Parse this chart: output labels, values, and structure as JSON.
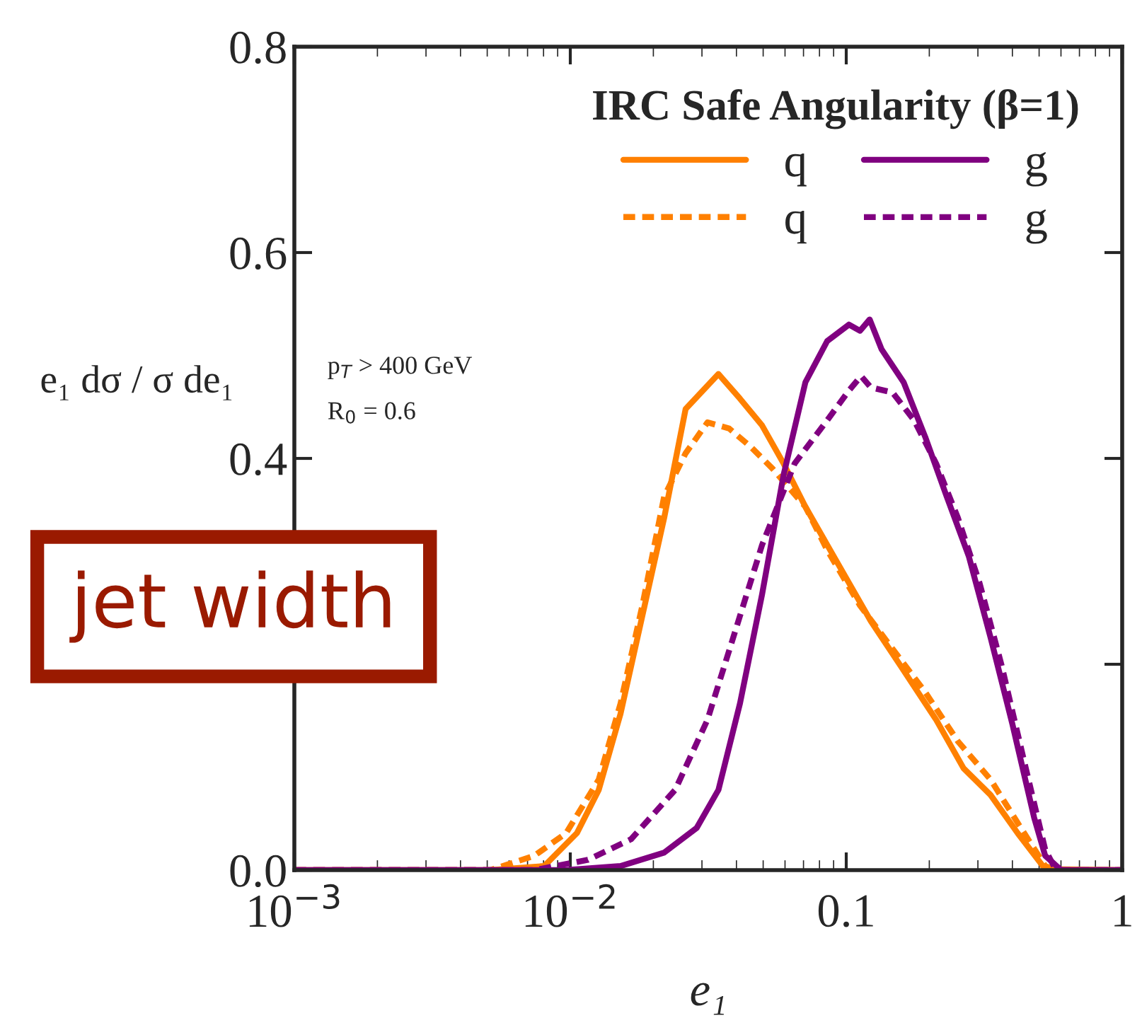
{
  "chart_data": {
    "type": "line",
    "legend_title": "IRC Safe Angularity (β=1)",
    "xlabel": "e₁",
    "ylabel": "e₁ dσ / σ de₁",
    "annotations": [
      "p$_{T}$ > 400 GeV",
      "R$_{0}$ = 0.6",
      "jet width"
    ],
    "log": "x",
    "legend": "top right",
    "grid": false,
    "xlim": [
      0.001,
      1
    ],
    "ylim": [
      0,
      0.8
    ],
    "xticks": [
      {
        "value": 0.001,
        "label": "10$^{−3}$"
      },
      {
        "value": 0.01,
        "label": "10$^{−2}$"
      },
      {
        "value": 0.1,
        "label": "0.1"
      },
      {
        "value": 1,
        "label": "1"
      }
    ],
    "yticks": [
      {
        "value": 0,
        "label": "0.0"
      },
      {
        "value": 0.2,
        "label": null
      },
      {
        "value": 0.4,
        "label": "0.4"
      },
      {
        "value": 0.6,
        "label": "0.6"
      },
      {
        "value": 0.8,
        "label": "0.8"
      }
    ],
    "series": [
      {
        "name": "q",
        "color": "#ff8000",
        "line_style": "solid",
        "x": [
          0.001,
          0.00513,
          0.00805,
          0.01057,
          0.01268,
          0.01521,
          0.01824,
          0.02188,
          0.02618,
          0.03443,
          0.04121,
          0.04955,
          0.05929,
          0.07112,
          0.08531,
          0.1023,
          0.1227,
          0.1614,
          0.2118,
          0.2661,
          0.3334,
          0.4178,
          0.526,
          1
        ],
        "values": [
          0,
          0,
          0.004,
          0.036,
          0.078,
          0.152,
          0.247,
          0.342,
          0.448,
          0.482,
          0.458,
          0.432,
          0.395,
          0.353,
          0.316,
          0.279,
          0.242,
          0.194,
          0.146,
          0.099,
          0.073,
          0.036,
          0.001,
          0
        ]
      },
      {
        "name": "q",
        "color": "#ff8000",
        "line_style": "dashed",
        "x": [
          0.001,
          0.00513,
          0.00741,
          0.00966,
          0.01268,
          0.01521,
          0.01824,
          0.02188,
          0.02618,
          0.03141,
          0.03767,
          0.04519,
          0.05408,
          0.07112,
          0.08531,
          0.1122,
          0.1472,
          0.1932,
          0.2541,
          0.3334,
          0.4178,
          0.526,
          0.5754,
          1
        ],
        "values": [
          0,
          0,
          0.014,
          0.036,
          0.088,
          0.162,
          0.257,
          0.363,
          0.405,
          0.435,
          0.429,
          0.411,
          0.39,
          0.353,
          0.311,
          0.257,
          0.215,
          0.173,
          0.125,
          0.088,
          0.046,
          0.004,
          0,
          0
        ]
      },
      {
        "name": "g",
        "color": "#800080",
        "line_style": "solid",
        "x": [
          0.001,
          0.00966,
          0.01521,
          0.02188,
          0.02871,
          0.03443,
          0.04121,
          0.04955,
          0.05929,
          0.07112,
          0.08531,
          0.1023,
          0.1122,
          0.1216,
          0.1343,
          0.1614,
          0.1932,
          0.2312,
          0.278,
          0.3334,
          0.3999,
          0.4797,
          0.526,
          0.6012,
          1
        ],
        "values": [
          0,
          0,
          0.004,
          0.017,
          0.041,
          0.078,
          0.162,
          0.268,
          0.384,
          0.474,
          0.514,
          0.53,
          0.524,
          0.535,
          0.506,
          0.474,
          0.421,
          0.363,
          0.305,
          0.226,
          0.142,
          0.051,
          0.014,
          0,
          0
        ]
      },
      {
        "name": "g",
        "color": "#800080",
        "line_style": "dashed",
        "x": [
          0.001,
          0.00741,
          0.01159,
          0.0166,
          0.02399,
          0.03141,
          0.04121,
          0.04955,
          0.06501,
          0.08531,
          0.1023,
          0.1132,
          0.1227,
          0.1472,
          0.1762,
          0.2118,
          0.2541,
          0.3041,
          0.3656,
          0.4375,
          0.526,
          0.5754,
          1
        ],
        "values": [
          0,
          0,
          0.01,
          0.03,
          0.078,
          0.146,
          0.247,
          0.316,
          0.395,
          0.437,
          0.466,
          0.48,
          0.469,
          0.464,
          0.437,
          0.395,
          0.342,
          0.279,
          0.199,
          0.11,
          0.02,
          0,
          0
        ]
      }
    ]
  }
}
